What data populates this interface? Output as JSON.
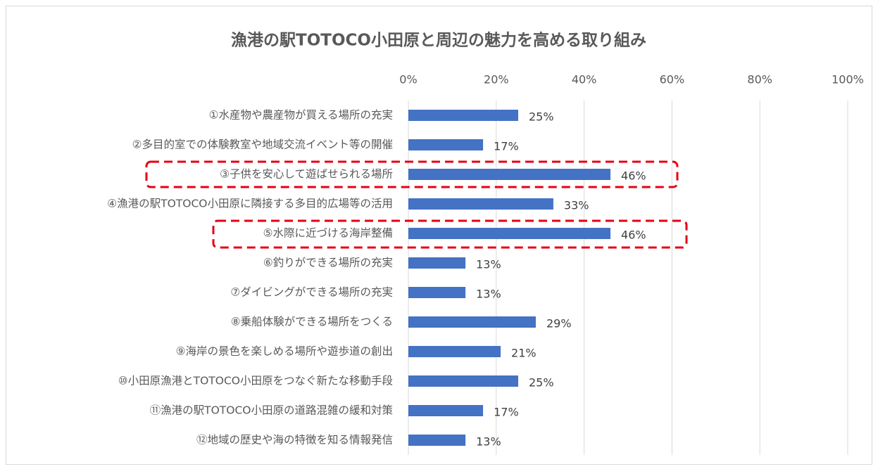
{
  "chart_data": {
    "type": "bar",
    "orientation": "horizontal",
    "title": "漁港の駅TOTOCO小田原と周辺の魅力を高める取り組み",
    "categories": [
      "①水産物や農産物が買える場所の充実",
      "②多目的室での体験教室や地域交流イベント等の開催",
      "③子供を安心して遊ばせられる場所",
      "④漁港の駅TOTOCO小田原に隣接する多目的広場等の活用",
      "⑤水際に近づける海岸整備",
      "⑥釣りができる場所の充実",
      "⑦ダイビングができる場所の充実",
      "⑧乗船体験ができる場所をつくる",
      "⑨海岸の景色を楽しめる場所や遊歩道の創出",
      "⑩小田原漁港とTOTOCO小田原をつなぐ新たな移動手段",
      "⑪漁港の駅TOTOCO小田原の道路混雑の緩和対策",
      "⑫地域の歴史や海の特徴を知る情報発信"
    ],
    "values": [
      25,
      17,
      46,
      33,
      46,
      13,
      13,
      29,
      21,
      25,
      17,
      13
    ],
    "value_labels": [
      "25%",
      "17%",
      "46%",
      "33%",
      "46%",
      "13%",
      "13%",
      "29%",
      "21%",
      "25%",
      "17%",
      "13%"
    ],
    "color": "#4472c4",
    "xlim": [
      0,
      100
    ],
    "xticks": [
      {
        "value": 0,
        "label": "0%"
      },
      {
        "value": 20,
        "label": "20%"
      },
      {
        "value": 40,
        "label": "40%"
      },
      {
        "value": 60,
        "label": "60%"
      },
      {
        "value": 80,
        "label": "80%"
      },
      {
        "value": 100,
        "label": "100%"
      }
    ],
    "grid": true
  }
}
